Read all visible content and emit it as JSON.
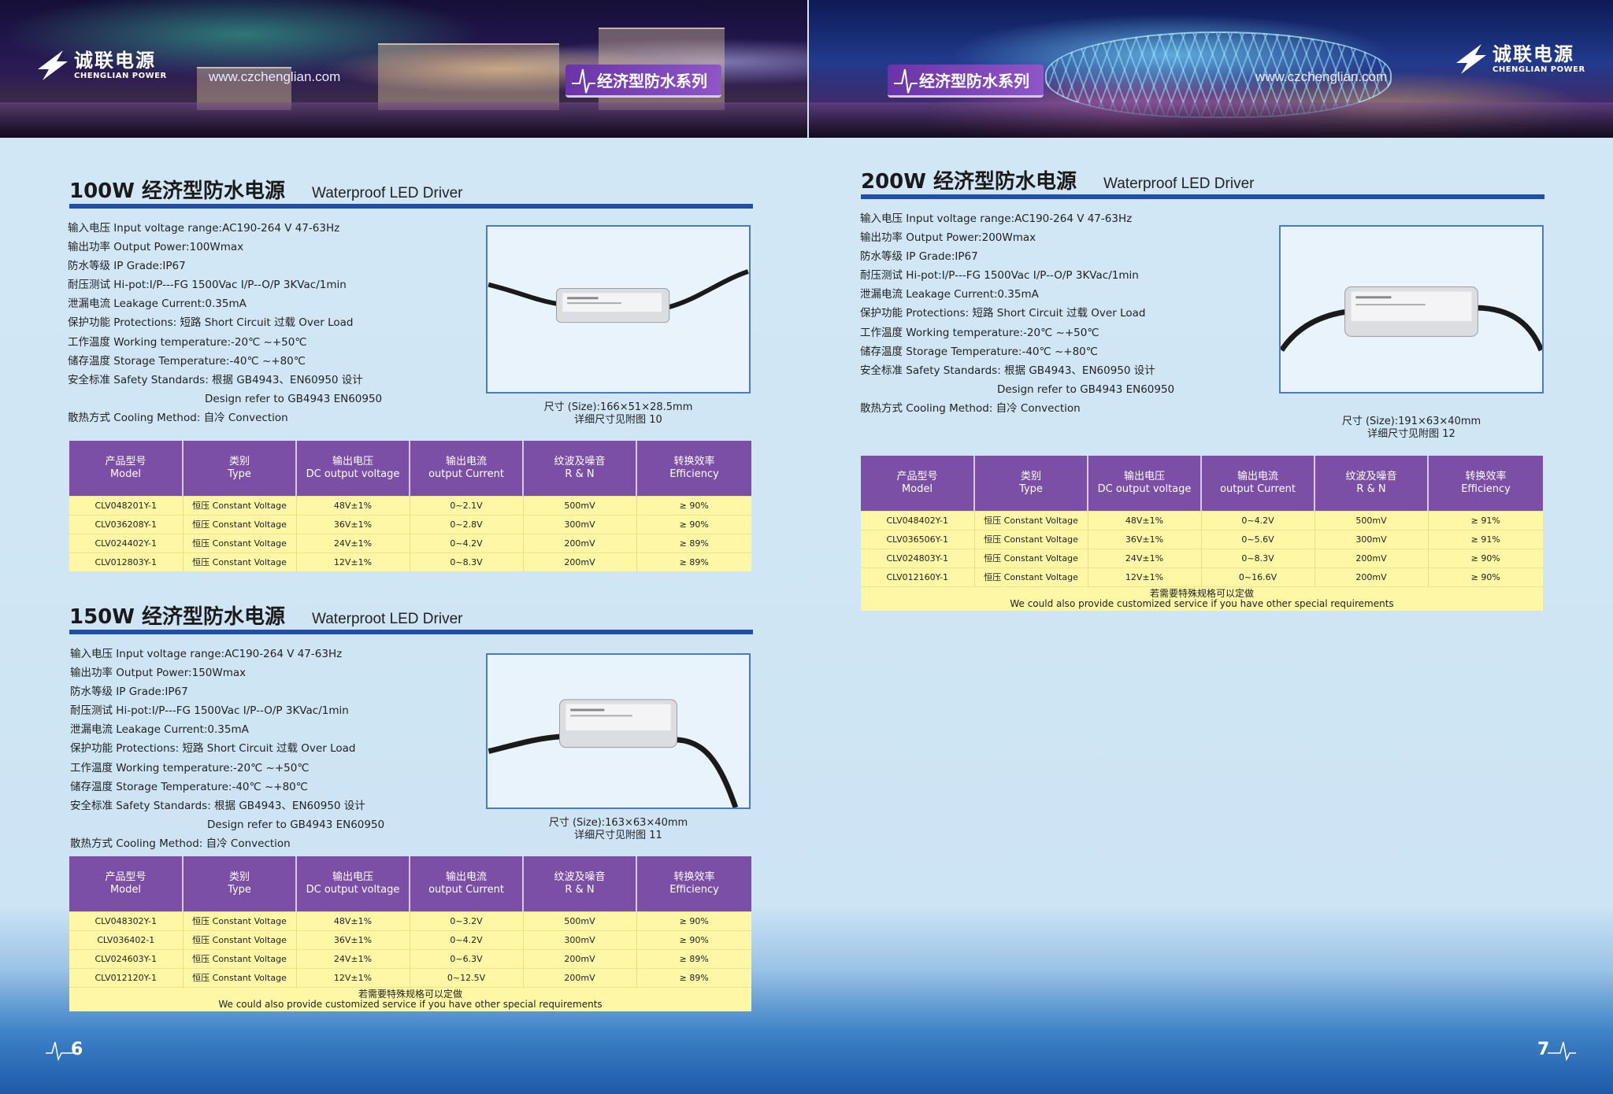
{
  "brand": {
    "name_cn": "诚联电源",
    "name_en": "CHENGLIAN POWER",
    "url": "www.czchenglian.com",
    "series": "经济型防水系列"
  },
  "page_numbers": {
    "left": "6",
    "right": "7"
  },
  "table_headers": [
    {
      "cn": "产品型号",
      "en": "Model"
    },
    {
      "cn": "类别",
      "en": "Type"
    },
    {
      "cn": "输出电压",
      "en": "DC output voltage"
    },
    {
      "cn": "输出电流",
      "en": "output Current"
    },
    {
      "cn": "纹波及噪音",
      "en": "R & N"
    },
    {
      "cn": "转换效率",
      "en": "Efficiency"
    }
  ],
  "note": {
    "cn": "若需要特殊规格可以定做",
    "en": "We could also provide customized service if you have other special requirements"
  },
  "products": [
    {
      "title_cn": "100W 经济型防水电源",
      "title_en": "Waterproof LED Driver",
      "specs": [
        "输入电压 Input voltage range:AC190-264 V 47-63Hz",
        "输出功率 Output Power:100Wmax",
        "防水等级 IP Grade:IP67",
        "耐压测试 Hi-pot:I/P---FG 1500Vac  I/P--O/P 3KVac/1min",
        "泄漏电流 Leakage Current:0.35mA",
        "保护功能 Protections: 短路 Short Circuit  过载 Over Load",
        "工作温度 Working temperature:-20℃ ~+50℃",
        "储存温度 Storage Temperature:-40℃ ~+80℃",
        "安全标准 Safety Standards: 根据 GB4943、EN60950 设计",
        "Design refer to GB4943 EN60950",
        "散热方式 Cooling Method: 自冷 Convection"
      ],
      "size": "尺寸 (Size):166×51×28.5mm",
      "drawing": "详细尺寸见附图 10",
      "rows": [
        [
          "CLV048201Y-1",
          "恒压 Constant Voltage",
          "48V±1%",
          "0~2.1V",
          "500mV",
          "≥ 90%"
        ],
        [
          "CLV036208Y-1",
          "恒压 Constant Voltage",
          "36V±1%",
          "0~2.8V",
          "300mV",
          "≥ 90%"
        ],
        [
          "CLV024402Y-1",
          "恒压 Constant Voltage",
          "24V±1%",
          "0~4.2V",
          "200mV",
          "≥ 89%"
        ],
        [
          "CLV012803Y-1",
          "恒压 Constant Voltage",
          "12V±1%",
          "0~8.3V",
          "200mV",
          "≥ 89%"
        ]
      ]
    },
    {
      "title_cn": "150W 经济型防水电源",
      "title_en": "Waterproot LED Driver",
      "specs": [
        "输入电压 Input voltage range:AC190-264 V 47-63Hz",
        "输出功率 Output Power:150Wmax",
        "防水等级 IP Grade:IP67",
        "耐压测试 Hi-pot:I/P---FG 1500Vac  I/P--O/P 3KVac/1min",
        "泄漏电流 Leakage Current:0.35mA",
        "保护功能 Protections: 短路 Short Circuit  过载 Over Load",
        "工作温度 Working temperature:-20℃ ~+50℃",
        "储存温度 Storage Temperature:-40℃ ~+80℃",
        "安全标准 Safety Standards: 根据 GB4943、EN60950 设计",
        "Design refer to GB4943 EN60950",
        "散热方式 Cooling Method: 自冷 Convection"
      ],
      "size": "尺寸 (Size):163×63×40mm",
      "drawing": "详细尺寸见附图 11",
      "rows": [
        [
          "CLV048302Y-1",
          "恒压 Constant Voltage",
          "48V±1%",
          "0~3.2V",
          "500mV",
          "≥ 90%"
        ],
        [
          "CLV036402-1",
          "恒压 Constant Voltage",
          "36V±1%",
          "0~4.2V",
          "300mV",
          "≥ 90%"
        ],
        [
          "CLV024603Y-1",
          "恒压 Constant Voltage",
          "24V±1%",
          "0~6.3V",
          "200mV",
          "≥ 89%"
        ],
        [
          "CLV012120Y-1",
          "恒压 Constant Voltage",
          "12V±1%",
          "0~12.5V",
          "200mV",
          "≥ 89%"
        ]
      ]
    },
    {
      "title_cn": "200W 经济型防水电源",
      "title_en": "Waterproof LED Driver",
      "specs": [
        "输入电压 Input voltage range:AC190-264 V 47-63Hz",
        "输出功率 Output Power:200Wmax",
        "防水等级 IP Grade:IP67",
        "耐压测试 Hi-pot:I/P---FG 1500Vac  I/P--O/P 3KVac/1min",
        "泄漏电流 Leakage Current:0.35mA",
        "保护功能 Protections: 短路 Short Circuit  过载 Over Load",
        "工作温度 Working temperature:-20℃ ~+50℃",
        "储存温度 Storage Temperature:-40℃ ~+80℃",
        "安全标准 Safety Standards: 根据 GB4943、EN60950 设计",
        "Design refer to GB4943 EN60950",
        "散热方式 Cooling Method: 自冷 Convection"
      ],
      "size": "尺寸 (Size):191×63×40mm",
      "drawing": "详细尺寸见附图 12",
      "rows": [
        [
          "CLV048402Y-1",
          "恒压 Constant Voltage",
          "48V±1%",
          "0~4.2V",
          "500mV",
          "≥ 91%"
        ],
        [
          "CLV036506Y-1",
          "恒压 Constant Voltage",
          "36V±1%",
          "0~5.6V",
          "300mV",
          "≥ 91%"
        ],
        [
          "CLV024803Y-1",
          "恒压 Constant Voltage",
          "24V±1%",
          "0~8.3V",
          "200mV",
          "≥ 90%"
        ],
        [
          "CLV012160Y-1",
          "恒压 Constant Voltage",
          "12V±1%",
          "0~16.6V",
          "200mV",
          "≥ 90%"
        ]
      ]
    }
  ],
  "colors": {
    "header_purple": "#7c4fa6",
    "row_yellow": "#fdf7a6",
    "title_rule_blue": "#1f4fa8",
    "page_bg": "#cfe4f3"
  }
}
